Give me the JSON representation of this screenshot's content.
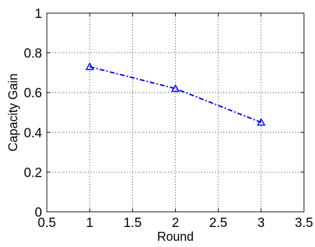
{
  "chart_data": {
    "type": "line",
    "title": "",
    "xlabel": "Round",
    "ylabel": "Capacity Gain",
    "xlim": [
      0.5,
      3.5
    ],
    "ylim": [
      0,
      1
    ],
    "xticks": [
      "0.5",
      "1",
      "1.5",
      "2",
      "2.5",
      "3",
      "3.5"
    ],
    "yticks": [
      "0",
      "0.2",
      "0.4",
      "0.6",
      "0.8",
      "1"
    ],
    "grid": true,
    "legend": "none",
    "series": [
      {
        "x": [
          1,
          2,
          3
        ],
        "y": [
          0.73,
          0.62,
          0.45
        ],
        "color": "#0000ff",
        "line_style": "dash-dot",
        "marker": "triangle-up"
      }
    ]
  }
}
